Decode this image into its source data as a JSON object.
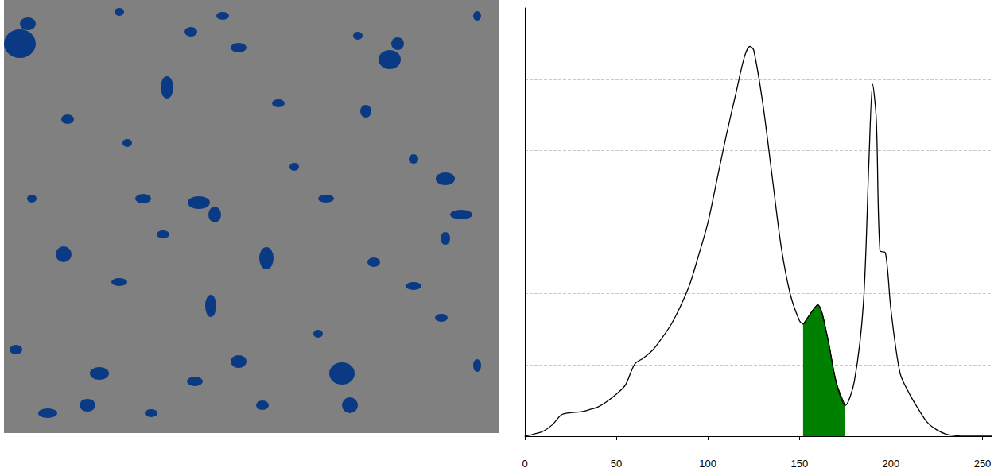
{
  "chart_data": {
    "type": "line",
    "x": [
      0,
      5,
      10,
      15,
      20,
      25,
      30,
      35,
      40,
      45,
      50,
      55,
      60,
      65,
      70,
      75,
      80,
      85,
      90,
      95,
      100,
      105,
      110,
      115,
      120,
      123,
      125,
      130,
      135,
      140,
      145,
      150,
      152,
      155,
      160,
      165,
      170,
      175,
      180,
      185,
      188,
      190,
      192,
      194,
      197,
      200,
      205,
      210,
      215,
      220,
      225,
      230,
      235,
      240,
      245,
      250,
      255
    ],
    "series": [
      {
        "type": "line",
        "color": "#000000",
        "values": [
          0,
          0.03,
          0.07,
          0.16,
          0.3,
          0.33,
          0.34,
          0.37,
          0.41,
          0.49,
          0.59,
          0.72,
          1.01,
          1.1,
          1.21,
          1.38,
          1.57,
          1.82,
          2.12,
          2.54,
          2.99,
          3.6,
          4.21,
          4.77,
          5.32,
          5.46,
          5.41,
          4.66,
          3.66,
          2.66,
          1.99,
          1.62,
          1.57,
          1.68,
          1.84,
          1.43,
          0.77,
          0.43,
          0.77,
          1.88,
          3.88,
          4.93,
          4.43,
          2.6,
          2.57,
          1.77,
          0.88,
          0.6,
          0.38,
          0.19,
          0.09,
          0.03,
          0.01,
          0,
          0,
          0,
          0
        ]
      },
      {
        "type": "area",
        "color": "#008000",
        "values": [
          null,
          null,
          null,
          null,
          null,
          null,
          null,
          null,
          null,
          null,
          null,
          null,
          null,
          null,
          null,
          null,
          null,
          null,
          null,
          null,
          null,
          null,
          null,
          null,
          null,
          null,
          null,
          null,
          null,
          null,
          null,
          null,
          1.57,
          1.68,
          1.84,
          1.43,
          0.77,
          0.43,
          null,
          null,
          null,
          null,
          null,
          null,
          null,
          null,
          null,
          null,
          null,
          null,
          null,
          null,
          null,
          null,
          null,
          null,
          null
        ]
      }
    ],
    "xlim": [
      0,
      255
    ],
    "xticks": [
      0,
      50,
      100,
      150,
      200,
      250
    ],
    "ylim": [
      0,
      6
    ],
    "yticks": [
      0,
      1,
      2,
      3,
      4,
      5
    ],
    "grid": true,
    "tick_labels": "x"
  }
}
